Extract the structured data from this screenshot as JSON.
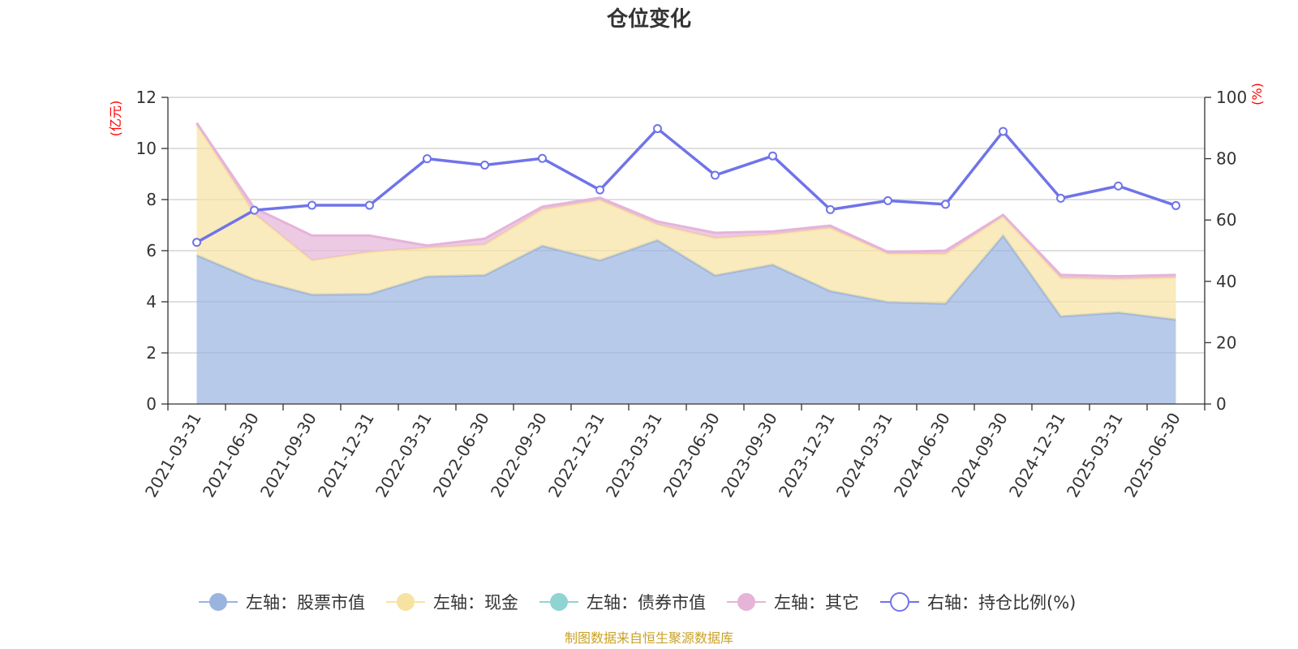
{
  "chart_data": {
    "type": "area",
    "title": "仓位变化",
    "categories": [
      "2021-03-31",
      "2021-06-30",
      "2021-09-30",
      "2021-12-31",
      "2022-03-31",
      "2022-06-30",
      "2022-09-30",
      "2022-12-31",
      "2023-03-31",
      "2023-06-30",
      "2023-09-30",
      "2023-12-31",
      "2024-03-31",
      "2024-06-30",
      "2024-09-30",
      "2024-12-31",
      "2025-03-31",
      "2025-06-30"
    ],
    "left_axis": {
      "unit": "(亿元)",
      "range": [
        0,
        12
      ],
      "ticks": [
        "0",
        "2",
        "4",
        "6",
        "8",
        "10",
        "12"
      ]
    },
    "right_axis": {
      "unit": "(%)",
      "range": [
        0,
        100
      ],
      "ticks": [
        "0",
        "20",
        "40",
        "60",
        "80",
        "100"
      ]
    },
    "stacked_series": [
      {
        "name": "左轴：股票市值",
        "color": "#9ab4e0",
        "values": [
          5.82,
          4.87,
          4.28,
          4.3,
          4.99,
          5.04,
          6.19,
          5.62,
          6.41,
          5.03,
          5.45,
          4.42,
          3.99,
          3.93,
          6.59,
          3.43,
          3.58,
          3.3
        ]
      },
      {
        "name": "左轴：现金",
        "color": "#f7e3a1",
        "values": [
          5.12,
          2.58,
          1.34,
          1.65,
          1.12,
          1.2,
          1.42,
          2.36,
          0.61,
          1.46,
          1.19,
          2.47,
          1.89,
          1.94,
          0.75,
          1.5,
          1.31,
          1.65
        ]
      },
      {
        "name": "左轴：债券市值",
        "color": "#8fd3d3",
        "values": [
          0,
          0,
          0,
          0,
          0,
          0,
          0,
          0,
          0,
          0,
          0,
          0,
          0,
          0,
          0,
          0,
          0,
          0
        ]
      },
      {
        "name": "左轴：其它",
        "color": "#e6b3d9",
        "values": [
          0.06,
          0.22,
          0.97,
          0.64,
          0.09,
          0.23,
          0.11,
          0.09,
          0.12,
          0.21,
          0.11,
          0.09,
          0.07,
          0.13,
          0.06,
          0.12,
          0.11,
          0.1
        ]
      }
    ],
    "line_series": {
      "name": "右轴：持仓比例(%)",
      "color": "#6f74e8",
      "values": [
        52.7,
        63.2,
        64.8,
        64.8,
        80.0,
        77.9,
        80.1,
        69.8,
        89.8,
        74.6,
        80.9,
        63.4,
        66.3,
        65.1,
        88.9,
        67.1,
        71.1,
        64.7
      ]
    },
    "grid": true,
    "legend_position": "bottom"
  },
  "footer": {
    "source": "制图数据来自恒生聚源数据库"
  },
  "colors": {
    "axis": "#333333",
    "grid": "#cccccc",
    "unit": "#ff0000"
  }
}
